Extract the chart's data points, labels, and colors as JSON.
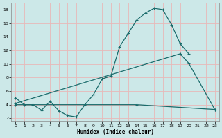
{
  "xlabel": "Humidex (Indice chaleur)",
  "background_color": "#cce8e8",
  "grid_color": "#e8b8b8",
  "line_color": "#1a6b6b",
  "xlim": [
    -0.5,
    23.5
  ],
  "ylim": [
    1.5,
    19.0
  ],
  "xticks": [
    0,
    1,
    2,
    3,
    4,
    5,
    6,
    7,
    8,
    9,
    10,
    11,
    12,
    13,
    14,
    15,
    16,
    17,
    18,
    19,
    20,
    21,
    22,
    23
  ],
  "yticks": [
    2,
    4,
    6,
    8,
    10,
    12,
    14,
    16,
    18
  ],
  "curve1_x": [
    0,
    1,
    2,
    3,
    4,
    5,
    6,
    7,
    8,
    9,
    10,
    11,
    12,
    13,
    14,
    15,
    16,
    17,
    18,
    19,
    20
  ],
  "curve1_y": [
    5,
    4,
    4,
    3.2,
    4.5,
    3.1,
    2.4,
    2.2,
    4.0,
    5.5,
    7.8,
    8.2,
    12.5,
    14.5,
    16.5,
    17.5,
    18.2,
    18.0,
    15.8,
    13.0,
    11.5
  ],
  "curve2_x": [
    0,
    19,
    20,
    23
  ],
  "curve2_y": [
    4.2,
    11.5,
    10.1,
    3.3
  ],
  "curve3_x": [
    0,
    14,
    23
  ],
  "curve3_y": [
    4.0,
    4.0,
    3.3
  ]
}
